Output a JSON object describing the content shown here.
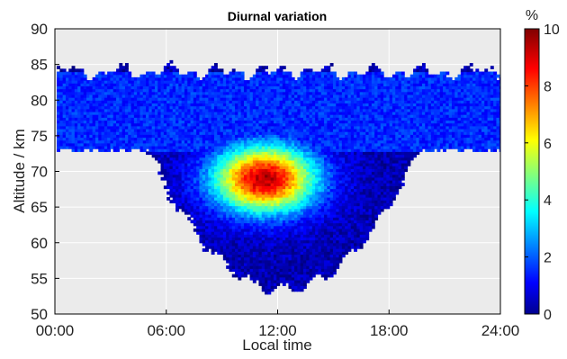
{
  "chart_data": {
    "type": "heatmap",
    "title": "Diurnal variation",
    "xlabel": "Local time",
    "ylabel": "Altitude / km",
    "x_ticks": [
      "00:00",
      "06:00",
      "12:00",
      "18:00",
      "24:00"
    ],
    "xlim": [
      0,
      24
    ],
    "y_ticks": [
      50,
      55,
      60,
      65,
      70,
      75,
      80,
      85,
      90
    ],
    "ylim": [
      50,
      90
    ],
    "grid": true,
    "background_color": "#ebebeb",
    "colorbar": {
      "label": "%",
      "range": [
        0,
        10
      ],
      "ticks": [
        0,
        2,
        4,
        6,
        8,
        10
      ],
      "colormap": "jet",
      "position": "right"
    },
    "features": {
      "hotspot_peak": {
        "time_h": 11.3,
        "altitude_km": 69,
        "value_pct": 9.5
      },
      "main_blob_width_h": 3.8,
      "main_blob_height_km": 6.5,
      "layer_band_km": [
        73,
        84
      ],
      "layer_band_value_pct": 1.2,
      "lower_bulge_bottom_km": 53.5,
      "lower_bulge_center_h": 12.3
    }
  }
}
